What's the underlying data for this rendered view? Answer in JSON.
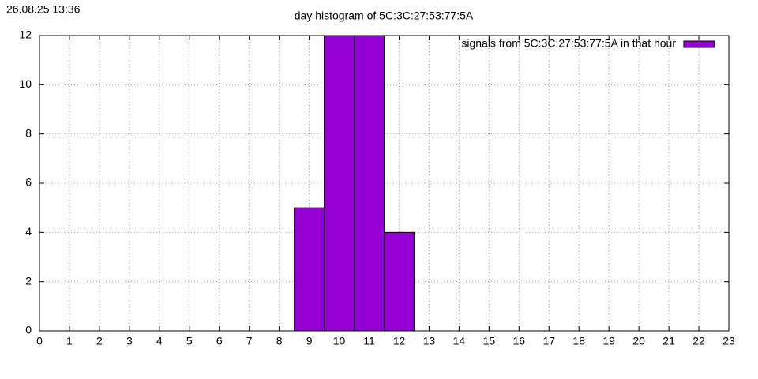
{
  "timestamp": "26.08.25 13:36",
  "chart_data": {
    "type": "bar",
    "title": "day histogram of 5C:3C:27:53:77:5A",
    "x": [
      9,
      10,
      11,
      12
    ],
    "series": [
      {
        "name": "signals from 5C:3C:27:53:77:5A in that hour",
        "color": "#9400d3",
        "values": [
          5,
          12,
          12,
          4
        ]
      }
    ],
    "xlim": [
      0,
      23
    ],
    "xticks": [
      0,
      1,
      2,
      3,
      4,
      5,
      6,
      7,
      8,
      9,
      10,
      11,
      12,
      13,
      14,
      15,
      16,
      17,
      18,
      19,
      20,
      21,
      22,
      23
    ],
    "ylim": [
      0,
      12
    ],
    "yticks": [
      0,
      2,
      4,
      6,
      8,
      10,
      12
    ],
    "grid": true,
    "legend": "top-right"
  }
}
